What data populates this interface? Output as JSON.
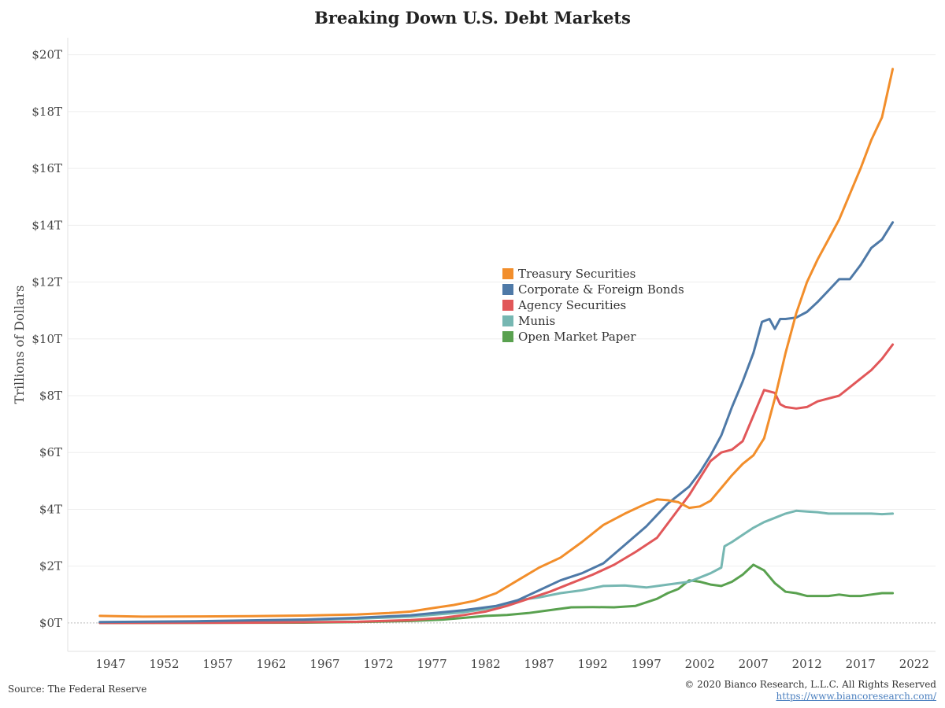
{
  "title": "Breaking Down U.S. Debt Markets",
  "footer": {
    "source": "Source: The Federal Reserve",
    "copyright": "© 2020 Bianco Research, L.L.C. All Rights Reserved",
    "link": "https://www.biancoresearch.com/"
  },
  "chart_data": {
    "type": "line",
    "title": "Breaking Down U.S. Debt Markets",
    "xlabel": "",
    "ylabel": "Trillions of Dollars",
    "xlim": [
      1943,
      2024
    ],
    "ylim": [
      -1,
      20.6
    ],
    "x_ticks": [
      1947,
      1952,
      1957,
      1962,
      1967,
      1972,
      1977,
      1982,
      1987,
      1992,
      1997,
      2002,
      2007,
      2012,
      2017,
      2022
    ],
    "y_ticks": [
      0,
      2,
      4,
      6,
      8,
      10,
      12,
      14,
      16,
      18,
      20
    ],
    "y_tick_labels": [
      "$0T",
      "$2T",
      "$4T",
      "$6T",
      "$8T",
      "$10T",
      "$12T",
      "$14T",
      "$16T",
      "$18T",
      "$20T"
    ],
    "grid": true,
    "legend_position": "center",
    "series": [
      {
        "name": "Treasury Securities",
        "color": "#f28e2b",
        "points": [
          [
            1946,
            0.25
          ],
          [
            1950,
            0.22
          ],
          [
            1955,
            0.23
          ],
          [
            1960,
            0.24
          ],
          [
            1965,
            0.26
          ],
          [
            1970,
            0.3
          ],
          [
            1973,
            0.35
          ],
          [
            1975,
            0.4
          ],
          [
            1977,
            0.52
          ],
          [
            1979,
            0.63
          ],
          [
            1981,
            0.78
          ],
          [
            1983,
            1.05
          ],
          [
            1985,
            1.5
          ],
          [
            1987,
            1.95
          ],
          [
            1989,
            2.3
          ],
          [
            1991,
            2.85
          ],
          [
            1993,
            3.45
          ],
          [
            1995,
            3.85
          ],
          [
            1997,
            4.2
          ],
          [
            1998,
            4.35
          ],
          [
            1999,
            4.32
          ],
          [
            2000,
            4.25
          ],
          [
            2001,
            4.05
          ],
          [
            2002,
            4.1
          ],
          [
            2003,
            4.3
          ],
          [
            2004,
            4.75
          ],
          [
            2005,
            5.2
          ],
          [
            2006,
            5.6
          ],
          [
            2007,
            5.9
          ],
          [
            2008,
            6.5
          ],
          [
            2009,
            7.9
          ],
          [
            2010,
            9.5
          ],
          [
            2011,
            10.9
          ],
          [
            2012,
            12.0
          ],
          [
            2013,
            12.8
          ],
          [
            2014,
            13.5
          ],
          [
            2015,
            14.2
          ],
          [
            2016,
            15.1
          ],
          [
            2017,
            16.0
          ],
          [
            2018,
            17.0
          ],
          [
            2019,
            17.8
          ],
          [
            2020,
            19.5
          ]
        ]
      },
      {
        "name": "Corporate & Foreign Bonds",
        "color": "#4e79a7",
        "points": [
          [
            1946,
            0.03
          ],
          [
            1955,
            0.06
          ],
          [
            1965,
            0.12
          ],
          [
            1970,
            0.18
          ],
          [
            1975,
            0.27
          ],
          [
            1980,
            0.45
          ],
          [
            1983,
            0.6
          ],
          [
            1985,
            0.8
          ],
          [
            1987,
            1.15
          ],
          [
            1989,
            1.5
          ],
          [
            1991,
            1.75
          ],
          [
            1993,
            2.1
          ],
          [
            1995,
            2.75
          ],
          [
            1997,
            3.4
          ],
          [
            1999,
            4.2
          ],
          [
            2000,
            4.5
          ],
          [
            2001,
            4.8
          ],
          [
            2002,
            5.3
          ],
          [
            2003,
            5.9
          ],
          [
            2004,
            6.6
          ],
          [
            2005,
            7.6
          ],
          [
            2006,
            8.5
          ],
          [
            2007,
            9.5
          ],
          [
            2007.8,
            10.6
          ],
          [
            2008.5,
            10.7
          ],
          [
            2009,
            10.35
          ],
          [
            2009.5,
            10.7
          ],
          [
            2010,
            10.7
          ],
          [
            2011,
            10.75
          ],
          [
            2012,
            10.95
          ],
          [
            2013,
            11.3
          ],
          [
            2014,
            11.7
          ],
          [
            2015,
            12.1
          ],
          [
            2016,
            12.1
          ],
          [
            2017,
            12.6
          ],
          [
            2018,
            13.2
          ],
          [
            2019,
            13.5
          ],
          [
            2020,
            14.1
          ]
        ]
      },
      {
        "name": "Agency Securities",
        "color": "#e15759",
        "points": [
          [
            1946,
            0.0
          ],
          [
            1960,
            0.01
          ],
          [
            1970,
            0.04
          ],
          [
            1975,
            0.1
          ],
          [
            1978,
            0.18
          ],
          [
            1980,
            0.28
          ],
          [
            1982,
            0.4
          ],
          [
            1984,
            0.6
          ],
          [
            1986,
            0.85
          ],
          [
            1988,
            1.1
          ],
          [
            1990,
            1.4
          ],
          [
            1992,
            1.7
          ],
          [
            1994,
            2.05
          ],
          [
            1996,
            2.5
          ],
          [
            1998,
            3.0
          ],
          [
            1999,
            3.5
          ],
          [
            2000,
            4.0
          ],
          [
            2001,
            4.5
          ],
          [
            2002,
            5.1
          ],
          [
            2003,
            5.7
          ],
          [
            2004,
            6.0
          ],
          [
            2005,
            6.1
          ],
          [
            2006,
            6.4
          ],
          [
            2007,
            7.3
          ],
          [
            2008,
            8.2
          ],
          [
            2009,
            8.1
          ],
          [
            2009.5,
            7.7
          ],
          [
            2010,
            7.6
          ],
          [
            2011,
            7.55
          ],
          [
            2012,
            7.6
          ],
          [
            2013,
            7.8
          ],
          [
            2014,
            7.9
          ],
          [
            2015,
            8.0
          ],
          [
            2016,
            8.3
          ],
          [
            2017,
            8.6
          ],
          [
            2018,
            8.9
          ],
          [
            2019,
            9.3
          ],
          [
            2020,
            9.8
          ]
        ]
      },
      {
        "name": "Munis",
        "color": "#76b7b2",
        "points": [
          [
            1946,
            0.02
          ],
          [
            1955,
            0.05
          ],
          [
            1965,
            0.1
          ],
          [
            1970,
            0.15
          ],
          [
            1975,
            0.22
          ],
          [
            1980,
            0.38
          ],
          [
            1983,
            0.55
          ],
          [
            1985,
            0.8
          ],
          [
            1987,
            0.9
          ],
          [
            1989,
            1.05
          ],
          [
            1991,
            1.15
          ],
          [
            1993,
            1.3
          ],
          [
            1995,
            1.32
          ],
          [
            1997,
            1.25
          ],
          [
            1999,
            1.35
          ],
          [
            2001,
            1.45
          ],
          [
            2003,
            1.75
          ],
          [
            2004,
            1.95
          ],
          [
            2004.3,
            2.7
          ],
          [
            2005,
            2.85
          ],
          [
            2006,
            3.1
          ],
          [
            2007,
            3.35
          ],
          [
            2008,
            3.55
          ],
          [
            2009,
            3.7
          ],
          [
            2010,
            3.85
          ],
          [
            2011,
            3.95
          ],
          [
            2012,
            3.92
          ],
          [
            2013,
            3.9
          ],
          [
            2014,
            3.85
          ],
          [
            2015,
            3.85
          ],
          [
            2016,
            3.85
          ],
          [
            2017,
            3.85
          ],
          [
            2018,
            3.85
          ],
          [
            2019,
            3.83
          ],
          [
            2020,
            3.85
          ]
        ]
      },
      {
        "name": "Open Market Paper",
        "color": "#59a14f",
        "points": [
          [
            1946,
            0.0
          ],
          [
            1965,
            0.01
          ],
          [
            1970,
            0.03
          ],
          [
            1975,
            0.07
          ],
          [
            1978,
            0.12
          ],
          [
            1980,
            0.18
          ],
          [
            1982,
            0.25
          ],
          [
            1984,
            0.28
          ],
          [
            1986,
            0.35
          ],
          [
            1988,
            0.45
          ],
          [
            1990,
            0.55
          ],
          [
            1992,
            0.56
          ],
          [
            1994,
            0.55
          ],
          [
            1996,
            0.6
          ],
          [
            1998,
            0.85
          ],
          [
            1999,
            1.05
          ],
          [
            2000,
            1.2
          ],
          [
            2001,
            1.5
          ],
          [
            2002,
            1.45
          ],
          [
            2003,
            1.35
          ],
          [
            2004,
            1.3
          ],
          [
            2005,
            1.45
          ],
          [
            2006,
            1.7
          ],
          [
            2007,
            2.05
          ],
          [
            2008,
            1.85
          ],
          [
            2009,
            1.4
          ],
          [
            2010,
            1.1
          ],
          [
            2011,
            1.05
          ],
          [
            2012,
            0.95
          ],
          [
            2013,
            0.95
          ],
          [
            2014,
            0.95
          ],
          [
            2015,
            1.0
          ],
          [
            2016,
            0.95
          ],
          [
            2017,
            0.95
          ],
          [
            2018,
            1.0
          ],
          [
            2019,
            1.05
          ],
          [
            2020,
            1.05
          ]
        ]
      }
    ]
  }
}
